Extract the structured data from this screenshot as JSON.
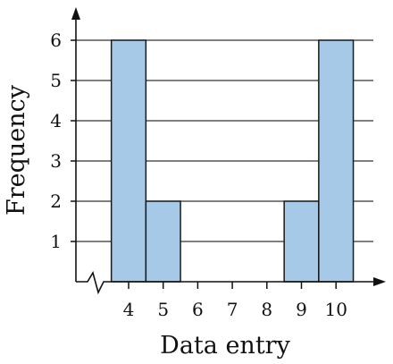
{
  "chart_data": {
    "type": "bar",
    "xlabel": "Data entry",
    "ylabel": "Frequency",
    "categories": [
      "4",
      "5",
      "6",
      "7",
      "8",
      "9",
      "10"
    ],
    "values": [
      6,
      2,
      0,
      0,
      0,
      2,
      6
    ],
    "yticks": [
      "1",
      "2",
      "3",
      "4",
      "5",
      "6"
    ],
    "ylim": [
      0,
      6
    ],
    "grid": "horizontal",
    "bar_color": "#a7c9e8",
    "bar_stroke": "#1a1a1a",
    "grid_color": "#333333",
    "axis_break": true
  }
}
